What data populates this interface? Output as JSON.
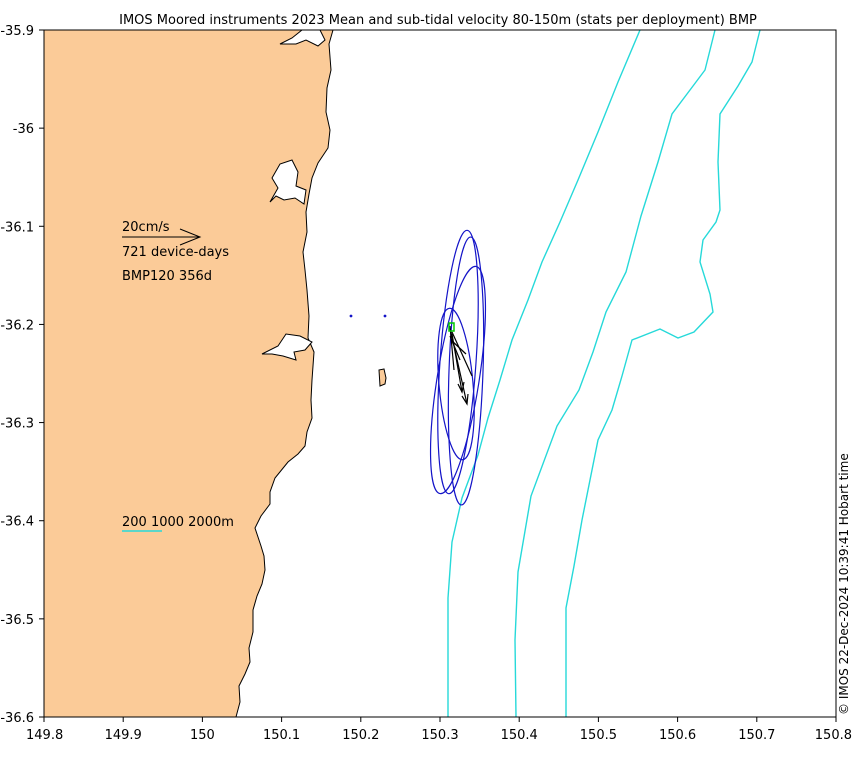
{
  "title": "IMOS Moored instruments 2023 Mean and sub-tidal velocity 80-150m (stats per deployment) BMP",
  "side_label": "© IMOS 22-Dec-2024 10:39:41 Hobart time",
  "legend": {
    "scale_label": "20cm/s",
    "device_days": "721 device-days",
    "deployment": "BMP120 356d",
    "isobaths_label": "200 1000 2000m"
  },
  "colors": {
    "land": "#fbcb98",
    "isobath": "#26d9d9",
    "ellipse": "#1414c8",
    "arrow": "#000000",
    "marker": "#00c800"
  },
  "axes": {
    "xlim": [
      149.8,
      150.8
    ],
    "ylim": [
      -36.6,
      -35.9
    ],
    "xticks": [
      "149.8",
      "149.9",
      "150",
      "150.1",
      "150.2",
      "150.3",
      "150.4",
      "150.5",
      "150.6",
      "150.7",
      "150.8"
    ],
    "yticks": [
      "-35.9",
      "-36",
      "-36.1",
      "-36.2",
      "-36.3",
      "-36.4",
      "-36.5",
      "-36.6"
    ]
  }
}
